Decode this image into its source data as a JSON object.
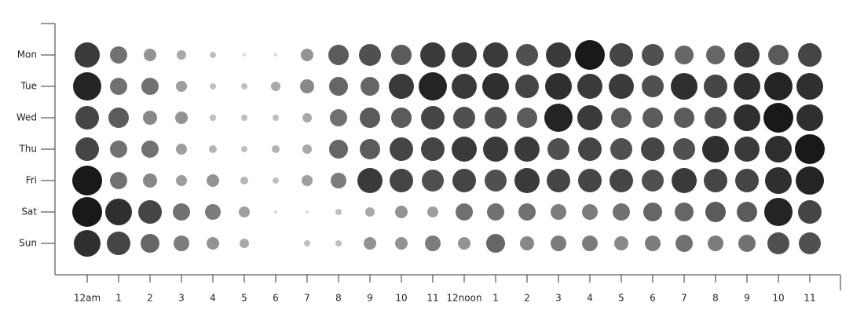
{
  "chart_data": {
    "type": "punchcard",
    "hours": [
      "12am",
      "1",
      "2",
      "3",
      "4",
      "5",
      "6",
      "7",
      "8",
      "9",
      "10",
      "11",
      "12noon",
      "1",
      "2",
      "3",
      "4",
      "5",
      "6",
      "7",
      "8",
      "9",
      "10",
      "11"
    ],
    "days": [
      "Mon",
      "Tue",
      "Wed",
      "Thu",
      "Fri",
      "Sat",
      "Sun"
    ],
    "values": [
      [
        16,
        11,
        8,
        6,
        4,
        2,
        2,
        8,
        13,
        14,
        13,
        16,
        16,
        16,
        14,
        16,
        19,
        15,
        14,
        12,
        12,
        16,
        13,
        15
      ],
      [
        18,
        11,
        11,
        7,
        4,
        4,
        6,
        9,
        12,
        12,
        16,
        18,
        16,
        17,
        15,
        17,
        16,
        16,
        14,
        17,
        15,
        17,
        18,
        17
      ],
      [
        15,
        13,
        9,
        8,
        4,
        4,
        4,
        6,
        11,
        13,
        13,
        15,
        14,
        14,
        13,
        18,
        16,
        13,
        13,
        13,
        14,
        17,
        19,
        17
      ],
      [
        15,
        11,
        11,
        7,
        5,
        4,
        5,
        6,
        12,
        13,
        15,
        15,
        16,
        16,
        16,
        14,
        15,
        14,
        15,
        14,
        17,
        16,
        17,
        19
      ],
      [
        19,
        11,
        9,
        7,
        8,
        5,
        4,
        7,
        10,
        16,
        15,
        14,
        15,
        14,
        16,
        15,
        15,
        15,
        14,
        16,
        15,
        15,
        17,
        18
      ],
      [
        19,
        17,
        15,
        11,
        10,
        7,
        2,
        2,
        4,
        6,
        8,
        7,
        11,
        11,
        11,
        10,
        10,
        11,
        12,
        12,
        13,
        13,
        18,
        15
      ],
      [
        17,
        15,
        12,
        10,
        8,
        6,
        0,
        4,
        4,
        8,
        8,
        10,
        8,
        12,
        9,
        10,
        10,
        9,
        10,
        11,
        10,
        11,
        14,
        14
      ]
    ]
  }
}
